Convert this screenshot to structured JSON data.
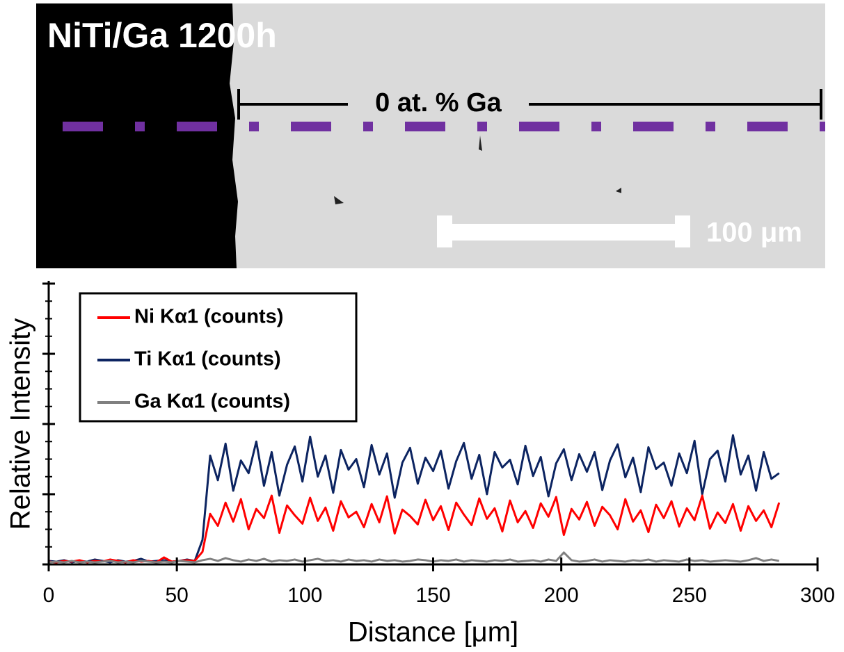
{
  "image": {
    "title": "NiTi/Ga 1200h",
    "line_label": "0 at. % Ga",
    "scale_label": "100 μm"
  },
  "chart_data": {
    "type": "line",
    "xlabel": "Distance [μm]",
    "ylabel": "Relative Intensity",
    "xlim": [
      0,
      300
    ],
    "xticks": [
      0,
      50,
      100,
      150,
      200,
      250,
      300
    ],
    "ylim": [
      0,
      4
    ],
    "yticks": [
      0,
      1,
      2,
      3,
      4
    ],
    "legend": "upper left",
    "x": [
      0,
      3,
      6,
      9,
      12,
      15,
      18,
      21,
      24,
      27,
      30,
      33,
      36,
      39,
      42,
      45,
      48,
      51,
      54,
      57,
      60,
      63,
      66,
      69,
      72,
      75,
      78,
      81,
      84,
      87,
      90,
      93,
      96,
      99,
      102,
      105,
      108,
      111,
      114,
      117,
      120,
      123,
      126,
      129,
      132,
      135,
      138,
      141,
      144,
      147,
      150,
      153,
      156,
      159,
      162,
      165,
      168,
      171,
      174,
      177,
      180,
      183,
      186,
      189,
      192,
      195,
      198,
      201,
      204,
      207,
      210,
      213,
      216,
      219,
      222,
      225,
      228,
      231,
      234,
      237,
      240,
      243,
      246,
      249,
      252,
      255,
      258,
      261,
      264,
      267,
      270,
      273,
      276,
      279,
      282,
      285
    ],
    "series": [
      {
        "name": "Ni Kα1 (counts)",
        "color": "#ff0000",
        "values": [
          0.04,
          0.03,
          0.05,
          0.04,
          0.06,
          0.03,
          0.05,
          0.04,
          0.07,
          0.05,
          0.03,
          0.06,
          0.04,
          0.05,
          0.03,
          0.1,
          0.04,
          0.05,
          0.06,
          0.05,
          0.18,
          0.72,
          0.55,
          0.88,
          0.61,
          0.93,
          0.5,
          0.79,
          0.66,
          0.98,
          0.45,
          0.84,
          0.7,
          0.58,
          0.95,
          0.62,
          0.81,
          0.48,
          0.9,
          0.67,
          0.75,
          0.53,
          0.86,
          0.6,
          0.97,
          0.44,
          0.78,
          0.69,
          0.57,
          0.92,
          0.63,
          0.83,
          0.49,
          0.88,
          0.71,
          0.56,
          0.94,
          0.65,
          0.8,
          0.47,
          0.91,
          0.6,
          0.76,
          0.52,
          0.87,
          0.68,
          0.96,
          0.42,
          0.79,
          0.64,
          0.89,
          0.55,
          0.82,
          0.7,
          0.5,
          0.93,
          0.61,
          0.77,
          0.46,
          0.85,
          0.66,
          0.9,
          0.54,
          0.8,
          0.63,
          0.98,
          0.51,
          0.74,
          0.59,
          0.86,
          0.48,
          0.83,
          0.62,
          0.77,
          0.53,
          0.88
        ]
      },
      {
        "name": "Ti Kα1 (counts)",
        "color": "#0c2461",
        "values": [
          0.05,
          0.04,
          0.06,
          0.03,
          0.05,
          0.04,
          0.07,
          0.05,
          0.03,
          0.06,
          0.04,
          0.05,
          0.08,
          0.04,
          0.05,
          0.06,
          0.04,
          0.05,
          0.07,
          0.05,
          0.35,
          1.55,
          1.2,
          1.72,
          1.05,
          1.48,
          1.3,
          1.75,
          1.12,
          1.6,
          0.98,
          1.42,
          1.68,
          1.18,
          1.82,
          1.25,
          1.55,
          1.02,
          1.63,
          1.35,
          1.5,
          1.1,
          1.7,
          1.28,
          1.58,
          0.95,
          1.45,
          1.66,
          1.15,
          1.52,
          1.33,
          1.62,
          1.08,
          1.47,
          1.73,
          1.22,
          1.56,
          1.0,
          1.6,
          1.38,
          1.49,
          1.14,
          1.69,
          1.26,
          1.53,
          0.97,
          1.44,
          1.64,
          1.2,
          1.57,
          1.32,
          1.6,
          1.06,
          1.48,
          1.71,
          1.24,
          1.52,
          1.03,
          1.67,
          1.36,
          1.45,
          1.12,
          1.58,
          1.3,
          1.76,
          1.0,
          1.5,
          1.62,
          1.18,
          1.84,
          1.28,
          1.55,
          1.05,
          1.6,
          1.22,
          1.3
        ]
      },
      {
        "name": "Ga Kα1 (counts)",
        "color": "#808080",
        "values": [
          0.03,
          0.04,
          0.03,
          0.05,
          0.03,
          0.04,
          0.03,
          0.04,
          0.05,
          0.03,
          0.04,
          0.03,
          0.05,
          0.04,
          0.03,
          0.04,
          0.03,
          0.05,
          0.04,
          0.03,
          0.06,
          0.08,
          0.05,
          0.09,
          0.06,
          0.04,
          0.07,
          0.05,
          0.08,
          0.04,
          0.06,
          0.05,
          0.07,
          0.04,
          0.06,
          0.08,
          0.05,
          0.06,
          0.04,
          0.07,
          0.05,
          0.06,
          0.04,
          0.07,
          0.05,
          0.06,
          0.04,
          0.05,
          0.07,
          0.06,
          0.04,
          0.06,
          0.05,
          0.07,
          0.04,
          0.06,
          0.05,
          0.04,
          0.06,
          0.05,
          0.07,
          0.04,
          0.05,
          0.06,
          0.04,
          0.07,
          0.05,
          0.17,
          0.06,
          0.04,
          0.05,
          0.07,
          0.04,
          0.06,
          0.05,
          0.04,
          0.06,
          0.05,
          0.07,
          0.04,
          0.06,
          0.05,
          0.04,
          0.07,
          0.05,
          0.06,
          0.04,
          0.05,
          0.06,
          0.05,
          0.04,
          0.06,
          0.09,
          0.05,
          0.07,
          0.05
        ]
      }
    ]
  }
}
